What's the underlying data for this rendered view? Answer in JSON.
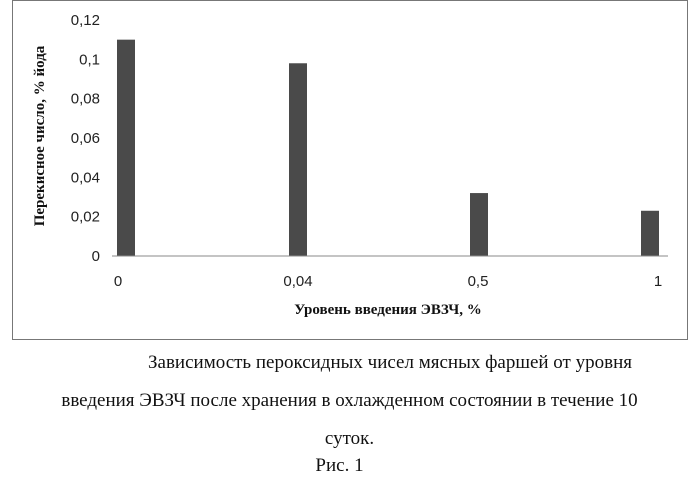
{
  "chart_data": {
    "type": "bar",
    "categories": [
      "0",
      "0,04",
      "0,5",
      "1"
    ],
    "values": [
      0.11,
      0.098,
      0.032,
      0.023
    ],
    "ylim": [
      0,
      0.12
    ],
    "yticks": [
      "0",
      "0,02",
      "0,04",
      "0,06",
      "0,08",
      "0,1",
      "0,12"
    ],
    "xlabel": "Уровень введения ЭВЗЧ, %",
    "ylabel": "Перекисное число, % йода",
    "grid": false,
    "bar_color": "#4a4a4a"
  },
  "caption": {
    "line1": "Зависимость пероксидных чисел мясных фаршей от уровня",
    "line2": "введения ЭВЗЧ после  хранения в охлажденном состоянии в течение 10",
    "line3": "суток.",
    "figure_label": "Рис. 1"
  }
}
